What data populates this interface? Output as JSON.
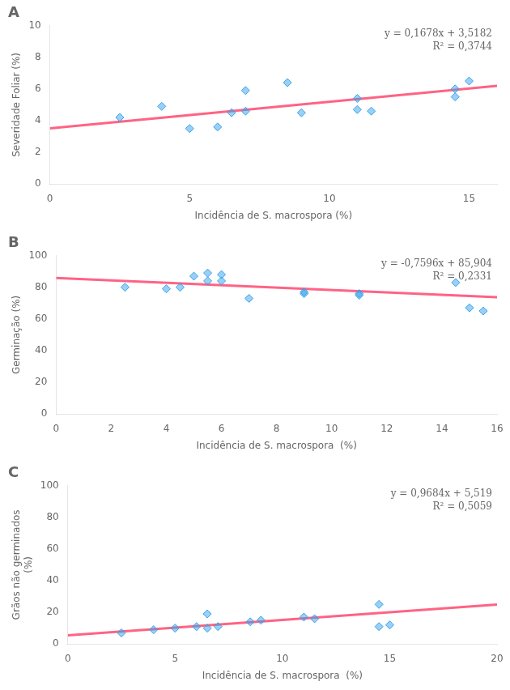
{
  "chart_data": [
    {
      "type": "scatter",
      "title": "A",
      "xlabel": "Incidência de S. macrospora (%)",
      "ylabel": "Severidade Foliar (%)",
      "annotations": [
        "y = 0,1678x + 3,5182",
        "R² = 0,3744"
      ],
      "series": [
        {
          "type": "scatter",
          "marker": "diamond",
          "x": [
            2.5,
            4.0,
            5.0,
            6.0,
            6.5,
            7.0,
            7.0,
            8.5,
            9.0,
            11.0,
            11.0,
            11.5,
            14.5,
            14.5,
            15.0
          ],
          "values": [
            4.2,
            4.9,
            3.5,
            3.6,
            4.5,
            4.6,
            5.9,
            6.4,
            4.5,
            5.4,
            4.7,
            4.6,
            5.5,
            6.0,
            6.5
          ]
        },
        {
          "type": "line",
          "x": [
            0,
            16
          ],
          "values": [
            3.5182,
            6.203
          ]
        }
      ],
      "xlim": [
        0,
        16
      ],
      "ylim": [
        0,
        10
      ],
      "xticks": [
        0,
        5,
        10,
        15
      ],
      "yticks": [
        0,
        2,
        4,
        6,
        8,
        10
      ],
      "grid": false
    },
    {
      "type": "scatter",
      "title": "B",
      "xlabel": "Incidência de S. macrospora  (%)",
      "ylabel": "Germinação (%)",
      "annotations": [
        "y = -0,7596x + 85,904",
        "R² = 0,2331"
      ],
      "series": [
        {
          "type": "scatter",
          "marker": "diamond",
          "x": [
            2.5,
            4.0,
            4.5,
            5.0,
            5.5,
            5.5,
            6.0,
            6.0,
            7.0,
            9.0,
            9.0,
            11.0,
            11.0,
            14.5,
            15.0,
            15.5
          ],
          "values": [
            80,
            79,
            80,
            87,
            89,
            84,
            88,
            84,
            73,
            77,
            76,
            75,
            76,
            83,
            67,
            65
          ]
        },
        {
          "type": "line",
          "x": [
            0,
            16
          ],
          "values": [
            85.904,
            73.7504
          ]
        }
      ],
      "xlim": [
        0,
        16
      ],
      "ylim": [
        0,
        100
      ],
      "xticks": [
        0,
        2,
        4,
        6,
        8,
        10,
        12,
        14,
        16
      ],
      "yticks": [
        0,
        20,
        40,
        60,
        80,
        100
      ],
      "grid": false
    },
    {
      "type": "scatter",
      "title": "C",
      "xlabel": "Incidência de S. macrospora  (%)",
      "ylabel": "Grãos não germinados\n(%)",
      "annotations": [
        "y = 0,9684x + 5,519",
        "R² = 0,5059"
      ],
      "series": [
        {
          "type": "scatter",
          "marker": "diamond",
          "x": [
            2.5,
            4.0,
            5.0,
            6.0,
            6.5,
            6.5,
            7.0,
            8.5,
            9.0,
            11.0,
            11.5,
            14.5,
            14.5,
            15.0
          ],
          "values": [
            7,
            9,
            10,
            11,
            10,
            19,
            11,
            14,
            15,
            17,
            16,
            25,
            11,
            12
          ]
        },
        {
          "type": "line",
          "x": [
            0,
            20
          ],
          "values": [
            5.519,
            24.887
          ]
        }
      ],
      "xlim": [
        0,
        20
      ],
      "ylim": [
        0,
        100
      ],
      "xticks": [
        0,
        5,
        10,
        15,
        20
      ],
      "yticks": [
        0,
        20,
        40,
        60,
        80,
        100
      ],
      "grid": false
    }
  ]
}
